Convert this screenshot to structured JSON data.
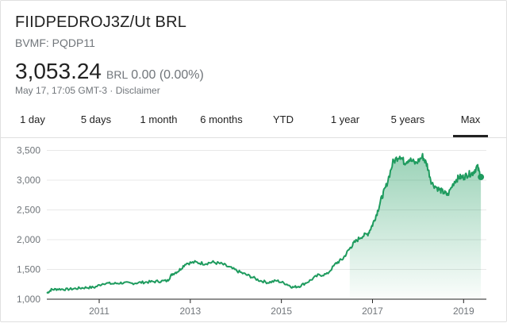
{
  "header": {
    "title": "FIIDPEDROJ3Z/Ut BRL",
    "subtitle": "BVMF: PQDP11",
    "price": "3,053.24",
    "currency": "BRL",
    "change": "0.00 (0.00%)",
    "timestamp": "May 17, 17:05 GMT-3 · Disclaimer"
  },
  "tabs": [
    {
      "label": "1 day"
    },
    {
      "label": "5 days"
    },
    {
      "label": "1 month"
    },
    {
      "label": "6 months"
    },
    {
      "label": "YTD"
    },
    {
      "label": "1 year"
    },
    {
      "label": "5 years"
    },
    {
      "label": "Max",
      "active": true
    }
  ],
  "colors": {
    "line": "#1e9b5e",
    "fill_top": "#1e9b5e",
    "grid": "#e8e8e8",
    "axis": "#222222"
  },
  "chart_data": {
    "type": "area",
    "y_ticks": [
      {
        "label": "1,000",
        "value": 1000
      },
      {
        "label": "1,500",
        "value": 1500
      },
      {
        "label": "2,000",
        "value": 2000
      },
      {
        "label": "2,500",
        "value": 2500
      },
      {
        "label": "3,000",
        "value": 3000
      },
      {
        "label": "3,500",
        "value": 3500
      }
    ],
    "x_ticks": [
      {
        "label": "2011",
        "value": 2011.0
      },
      {
        "label": "2013",
        "value": 2013.0
      },
      {
        "label": "2015",
        "value": 2015.0
      },
      {
        "label": "2017",
        "value": 2017.0
      },
      {
        "label": "2019",
        "value": 2019.0
      }
    ],
    "xlim": [
      2009.85,
      2019.5
    ],
    "ylim": [
      1000,
      3600
    ],
    "grid": true,
    "series": [
      {
        "x": [
          2009.85,
          2009.95,
          2010.1,
          2010.3,
          2010.5,
          2010.7,
          2010.9,
          2011.1,
          2011.3,
          2011.5,
          2011.7,
          2011.9,
          2012.1,
          2012.3,
          2012.5,
          2012.6,
          2012.75,
          2012.9,
          2013.1,
          2013.3,
          2013.5,
          2013.7,
          2013.9,
          2014.1,
          2014.3,
          2014.5,
          2014.7,
          2014.9,
          2015.1,
          2015.25,
          2015.4,
          2015.6,
          2015.8,
          2016.0,
          2016.2,
          2016.35,
          2016.5,
          2016.6,
          2016.75,
          2016.9,
          2017.0,
          2017.1,
          2017.2,
          2017.3,
          2017.45,
          2017.6,
          2017.7,
          2017.8,
          2017.95,
          2018.1,
          2018.2,
          2018.3,
          2018.45,
          2018.55,
          2018.65,
          2018.8,
          2018.9,
          2019.0,
          2019.1,
          2019.2,
          2019.3,
          2019.38
        ],
        "y": [
          1100,
          1160,
          1170,
          1165,
          1180,
          1195,
          1200,
          1270,
          1260,
          1275,
          1265,
          1280,
          1290,
          1300,
          1310,
          1420,
          1480,
          1600,
          1620,
          1600,
          1620,
          1590,
          1520,
          1450,
          1390,
          1320,
          1280,
          1310,
          1260,
          1200,
          1220,
          1300,
          1400,
          1420,
          1600,
          1680,
          1850,
          1950,
          2050,
          2100,
          2250,
          2450,
          2700,
          2900,
          3300,
          3420,
          3300,
          3350,
          3280,
          3400,
          3250,
          2950,
          2850,
          2800,
          2750,
          2980,
          3050,
          3050,
          3100,
          3120,
          3230,
          3053
        ]
      }
    ],
    "last_point": {
      "x": 2019.38,
      "y": 3053
    }
  }
}
